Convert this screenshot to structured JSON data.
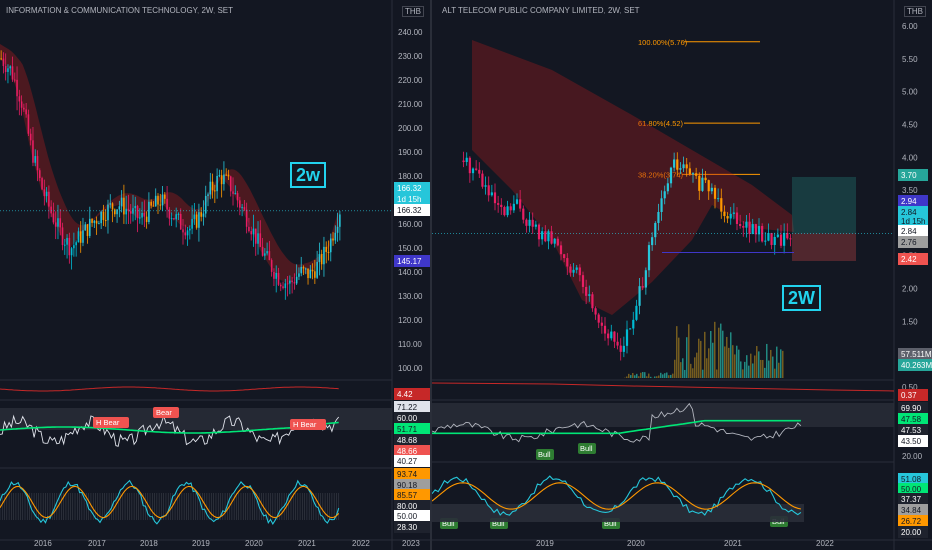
{
  "left": {
    "title": "INFORMATION & COMMUNICATION TECHNOLOGY",
    "interval": "2W",
    "exchange": "SET",
    "currency": "THB",
    "badge": "2w",
    "price_axis": [
      "240.00",
      "230.00",
      "220.00",
      "210.00",
      "200.00",
      "190.00",
      "180.00",
      "170.00",
      "160.00",
      "150.00",
      "140.00",
      "130.00",
      "120.00",
      "110.00",
      "100.00"
    ],
    "price_tags": [
      {
        "text": "166.32",
        "sub": "1d 15h",
        "value": 166.32,
        "color": "#26c6da"
      },
      {
        "text": "166.32",
        "value": 163.5,
        "color": "#ffffff",
        "fg": "#131722"
      },
      {
        "text": "145.17",
        "value": 145.17,
        "color": "#3f37c9"
      }
    ],
    "vol_tags": [
      {
        "text": "4.42",
        "color": "#c62828"
      }
    ],
    "rsi_tags": [
      {
        "text": "71.22",
        "color": "#e0e3eb",
        "fg": "#131722"
      },
      {
        "text": "60.00",
        "color": "#1e222d"
      },
      {
        "text": "51.71",
        "color": "#00e676",
        "fg": "#131722"
      },
      {
        "text": "48.68",
        "color": "#1e222d"
      },
      {
        "text": "48.66",
        "color": "#ef5350"
      },
      {
        "text": "40.27",
        "color": "#ffffff",
        "fg": "#131722"
      }
    ],
    "stoch_tags": [
      {
        "text": "93.74",
        "color": "#ff9800",
        "fg": "#131722"
      },
      {
        "text": "90.18",
        "color": "#9e9e9e",
        "fg": "#131722"
      },
      {
        "text": "85.57",
        "color": "#ff9800",
        "fg": "#131722"
      },
      {
        "text": "80.00",
        "color": "#1e222d"
      },
      {
        "text": "50.00",
        "color": "#ffffff",
        "fg": "#131722"
      },
      {
        "text": "28.30",
        "color": "#1e222d"
      }
    ],
    "x_axis": [
      "2016",
      "2017",
      "2018",
      "2019",
      "2020",
      "2021",
      "2022",
      "2023"
    ],
    "annotations": [
      {
        "text": "H Bear",
        "kind": "bear"
      },
      {
        "text": "Bear",
        "kind": "bear"
      },
      {
        "text": "H Bear",
        "kind": "bear"
      }
    ]
  },
  "right": {
    "title": "ALT TELECOM PUBLIC COMPANY LIMITED",
    "interval": "2W",
    "exchange": "SET",
    "currency": "THB",
    "badge": "2W",
    "price_axis": [
      "6.00",
      "5.50",
      "5.00",
      "4.50",
      "4.00",
      "3.50",
      "3.00",
      "2.50",
      "2.00",
      "1.50",
      "1.00",
      "0.50"
    ],
    "fib_levels": [
      {
        "label": "100.00%(5.76)",
        "value": 5.76
      },
      {
        "label": "61.80%(4.52)",
        "value": 4.52
      },
      {
        "label": "38.20%(3.74)",
        "value": 3.74
      }
    ],
    "price_tags": [
      {
        "text": "3.70",
        "value": 3.7,
        "color": "#26a69a"
      },
      {
        "text": "2.94",
        "value": 2.94,
        "color": "#3f37c9"
      },
      {
        "text": "2.84",
        "sub": "1d 15h",
        "value": 2.84,
        "color": "#26c6da"
      },
      {
        "text": "2.84",
        "value": 2.62,
        "color": "#ffffff",
        "fg": "#131722"
      },
      {
        "text": "2.76",
        "value": 2.42,
        "color": "#9e9e9e",
        "fg": "#131722"
      },
      {
        "text": "2.42",
        "value": 2.24,
        "color": "#ef5350"
      }
    ],
    "vol_tags": [
      {
        "text": "57.511M",
        "color": "#5d606b"
      },
      {
        "text": "40.263M",
        "color": "#26a69a"
      }
    ],
    "ind_tags": [
      {
        "text": "0.37",
        "color": "#c62828"
      },
      {
        "text": "69.90",
        "color": "#1e222d"
      },
      {
        "text": "47.58",
        "color": "#00e676",
        "fg": "#131722"
      },
      {
        "text": "47.53",
        "color": "#1e222d"
      },
      {
        "text": "43.50",
        "color": "#ffffff",
        "fg": "#131722"
      }
    ],
    "stoch_tags": [
      {
        "text": "51.08",
        "color": "#26c6da",
        "fg": "#131722"
      },
      {
        "text": "50.00",
        "color": "#00e676",
        "fg": "#131722"
      },
      {
        "text": "37.37",
        "color": "#1e222d"
      },
      {
        "text": "34.84",
        "color": "#9e9e9e",
        "fg": "#131722"
      },
      {
        "text": "26.72",
        "color": "#ff9800",
        "fg": "#131722"
      },
      {
        "text": "20.00",
        "color": "#1e222d"
      }
    ],
    "x_axis": [
      "2019",
      "2020",
      "2021",
      "2022"
    ],
    "annotations": [
      {
        "text": "Bull",
        "kind": "bull"
      },
      {
        "text": "Bull",
        "kind": "bull"
      },
      {
        "text": "Bull",
        "kind": "bull"
      },
      {
        "text": "Bull",
        "kind": "bull"
      },
      {
        "text": "Bull",
        "kind": "bull"
      },
      {
        "text": "Bull",
        "kind": "bull"
      }
    ]
  },
  "chart_data": [
    {
      "type": "candlestick",
      "title": "INFORMATION & COMMUNICATION TECHNOLOGY, 2W, SET",
      "ylim": [
        100,
        245
      ],
      "x": [
        "2016",
        "2017",
        "2018",
        "2019",
        "2020",
        "2021"
      ],
      "close_path": [
        229,
        224,
        212,
        192,
        176,
        165,
        156,
        150,
        155,
        160,
        164,
        167,
        168,
        165,
        162,
        166,
        170,
        165,
        160,
        158,
        164,
        174,
        180,
        176,
        168,
        160,
        150,
        143,
        137,
        135,
        140,
        139,
        144,
        152,
        166
      ],
      "last": 166.32
    },
    {
      "type": "candlestick",
      "title": "ALT TELECOM PUBLIC COMPANY LIMITED, 2W, SET",
      "ylim": [
        0.5,
        6.1
      ],
      "x": [
        "2019",
        "2020",
        "2021"
      ],
      "close_path": [
        3.95,
        3.8,
        3.4,
        3.1,
        3.3,
        3.0,
        2.8,
        2.7,
        2.4,
        2.1,
        1.7,
        1.3,
        1.1,
        1.5,
        2.4,
        3.2,
        3.9,
        3.8,
        3.6,
        3.5,
        3.2,
        3.1,
        2.9,
        2.8,
        2.75,
        2.84
      ],
      "last": 2.84
    }
  ]
}
